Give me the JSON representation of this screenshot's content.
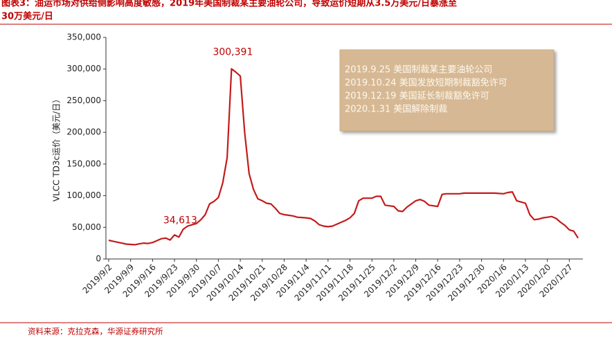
{
  "chart_data": {
    "type": "line",
    "title_lines": [
      "图表3：油运市场对供给侧影响高度敏感，2019年美国制裁某主要油轮公司，导致运价短期从3.5万美元/日暴涨至",
      "30万美元/日"
    ],
    "ylabel": "VLCC TD3c运价（美元/日）",
    "source": "资料来源：克拉克森，华源证券研究所",
    "annotation_box": [
      "2019.9.25 美国制裁某主要油轮公司",
      "2019.10.24 美国发放短期制裁豁免许可",
      "2019.12.19 美国延长制裁豁免许可",
      "2020.1.31 美国解除制裁"
    ],
    "color": "#c41a1a",
    "ylim": [
      0,
      350000
    ],
    "yticks": [
      0,
      {
        "value": 50000,
        "label": "50,000"
      },
      {
        "value": 100000,
        "label": "100,000"
      },
      {
        "value": 150000,
        "label": "150,000"
      },
      {
        "value": 200000,
        "label": "200,000"
      },
      {
        "value": 250000,
        "label": "250,000"
      },
      {
        "value": 300000,
        "label": "300,000"
      },
      {
        "value": 350000,
        "label": "350,000"
      }
    ],
    "categories": [
      "2019/9/2",
      null,
      null,
      null,
      null,
      "2019/9/9",
      null,
      null,
      null,
      null,
      "2019/9/16",
      null,
      null,
      null,
      null,
      "2019/9/23",
      null,
      null,
      null,
      null,
      "2019/9/30",
      null,
      null,
      null,
      null,
      "2019/10/7",
      null,
      null,
      null,
      null,
      "2019/10/14",
      null,
      null,
      null,
      null,
      "2019/10/21",
      null,
      null,
      null,
      null,
      "2019/10/28",
      null,
      null,
      null,
      null,
      "2019/11/4",
      null,
      null,
      null,
      null,
      "2019/11/11",
      null,
      null,
      null,
      null,
      "2019/11/18",
      null,
      null,
      null,
      null,
      "2019/11/25",
      null,
      null,
      null,
      null,
      "2019/12/2",
      null,
      null,
      null,
      null,
      "2019/12/9",
      null,
      null,
      null,
      null,
      "2019/12/16",
      null,
      null,
      null,
      null,
      "2019/12/23",
      null,
      null,
      null,
      null,
      "2019/12/30",
      null,
      null,
      null,
      null,
      "2020/1/6",
      null,
      null,
      null,
      null,
      "2020/1/13",
      null,
      null,
      null,
      null,
      "2020/1/20",
      null,
      null,
      null,
      null,
      "2020/1/27",
      null,
      null
    ],
    "values": [
      29500,
      28000,
      26500,
      25000,
      23500,
      23000,
      22500,
      24000,
      25000,
      24500,
      26000,
      29000,
      32000,
      33000,
      30000,
      38000,
      34613,
      47000,
      52000,
      54000,
      56000,
      62000,
      70000,
      87000,
      91000,
      97000,
      120000,
      160000,
      300391,
      295000,
      289000,
      200000,
      135000,
      110000,
      95000,
      92000,
      88000,
      87000,
      80000,
      72000,
      70000,
      69000,
      68000,
      66000,
      65500,
      65000,
      64000,
      60000,
      54000,
      52000,
      51000,
      52000,
      55000,
      58000,
      61000,
      65000,
      72000,
      92000,
      96000,
      96000,
      96000,
      99000,
      99000,
      85000,
      84000,
      83000,
      76000,
      75000,
      82000,
      87000,
      92000,
      94000,
      91000,
      85000,
      84000,
      83000,
      102000,
      103000,
      103000,
      103000,
      103000,
      104000,
      104000,
      104000,
      104000,
      104000,
      104000,
      104000,
      104000,
      103500,
      103000,
      105000,
      106000,
      92000,
      90000,
      88000,
      70000,
      62000,
      63000,
      65000,
      66000,
      67000,
      64000,
      58000,
      53000,
      46000,
      44000,
      33000
    ],
    "value_labels": [
      null,
      null,
      null,
      null,
      null,
      null,
      null,
      null,
      null,
      null,
      null,
      null,
      null,
      null,
      null,
      null,
      "34,613",
      null,
      null,
      null,
      null,
      null,
      null,
      null,
      null,
      null,
      null,
      null,
      "300,391",
      null,
      null,
      null,
      null,
      null,
      null,
      null,
      null,
      null,
      null,
      null,
      null,
      null,
      null,
      null,
      null,
      null,
      null,
      null,
      null,
      null,
      null,
      null,
      null,
      null,
      null,
      null,
      null,
      null,
      null,
      null,
      null,
      null,
      null,
      null,
      null,
      null,
      null,
      null,
      null,
      null,
      null,
      null,
      null,
      null,
      null,
      null,
      null,
      null,
      null,
      null,
      null,
      null,
      null,
      null,
      null,
      null,
      null,
      null,
      null,
      null,
      null,
      null,
      null,
      null,
      null,
      null,
      null,
      null,
      null,
      null,
      null,
      null,
      null,
      null,
      null,
      null,
      null,
      null
    ]
  }
}
